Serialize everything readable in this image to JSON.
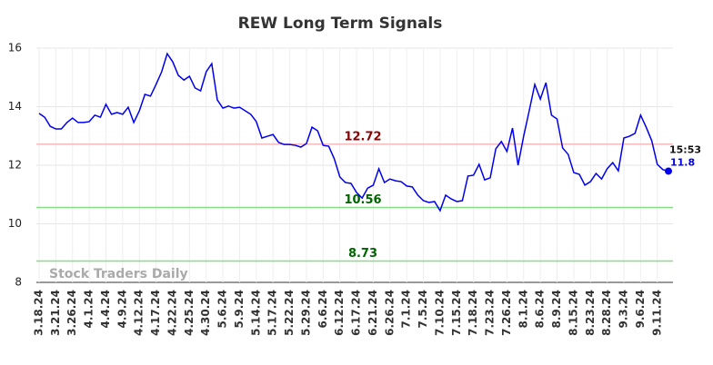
{
  "chart_data": {
    "type": "line",
    "title": "REW Long Term Signals",
    "categories": [
      "3.18.24",
      null,
      null,
      "3.21.24",
      null,
      null,
      "3.26.24",
      null,
      null,
      "4.1.24",
      null,
      null,
      "4.4.24",
      null,
      null,
      "4.9.24",
      null,
      null,
      "4.12.24",
      null,
      null,
      "4.17.24",
      null,
      null,
      "4.22.24",
      null,
      null,
      "4.25.24",
      null,
      null,
      "4.30.24",
      null,
      null,
      "5.6.24",
      null,
      null,
      "5.9.24",
      null,
      null,
      "5.14.24",
      null,
      null,
      "5.17.24",
      null,
      null,
      "5.22.24",
      null,
      null,
      "5.29.24",
      null,
      null,
      "6.6.24",
      null,
      null,
      "6.12.24",
      null,
      null,
      "6.17.24",
      null,
      null,
      "6.21.24",
      null,
      null,
      "6.26.24",
      null,
      null,
      "7.1.24",
      null,
      null,
      "7.5.24",
      null,
      null,
      "7.10.24",
      null,
      null,
      "7.15.24",
      null,
      null,
      "7.18.24",
      null,
      null,
      "7.23.24",
      null,
      null,
      "7.26.24",
      null,
      null,
      "8.1.24",
      null,
      null,
      "8.6.24",
      null,
      null,
      "8.9.24",
      null,
      null,
      "8.15.24",
      null,
      null,
      "8.23.24",
      null,
      null,
      "8.28.24",
      null,
      null,
      "9.3.24",
      null,
      null,
      "9.6.24",
      null,
      null,
      "9.11.24",
      null,
      null
    ],
    "values": [
      13.77,
      13.64,
      13.33,
      13.24,
      13.24,
      13.46,
      13.61,
      13.46,
      13.46,
      13.49,
      13.71,
      13.64,
      14.08,
      13.74,
      13.8,
      13.74,
      13.98,
      13.46,
      13.86,
      14.42,
      14.36,
      14.76,
      15.19,
      15.81,
      15.53,
      15.07,
      14.91,
      15.04,
      14.64,
      14.54,
      15.19,
      15.47,
      14.23,
      13.95,
      14.02,
      13.95,
      13.98,
      13.86,
      13.74,
      13.49,
      12.93,
      12.99,
      13.05,
      12.78,
      12.71,
      12.71,
      12.68,
      12.62,
      12.74,
      13.3,
      13.18,
      12.68,
      12.65,
      12.22,
      11.6,
      11.41,
      11.38,
      11.07,
      10.88,
      11.22,
      11.32,
      11.88,
      11.41,
      11.53,
      11.47,
      11.44,
      11.29,
      11.26,
      10.98,
      10.79,
      10.73,
      10.76,
      10.45,
      10.98,
      10.85,
      10.76,
      10.79,
      11.63,
      11.66,
      12.03,
      11.5,
      11.57,
      12.56,
      12.81,
      12.47,
      13.27,
      12.0,
      12.99,
      13.86,
      14.76,
      14.26,
      14.82,
      13.71,
      13.58,
      12.59,
      12.37,
      11.75,
      11.69,
      11.32,
      11.44,
      11.72,
      11.53,
      11.88,
      12.09,
      11.81,
      12.93,
      12.99,
      13.09,
      13.71,
      13.3,
      12.84,
      12.03,
      11.85,
      11.8
    ],
    "color": "#0000ee",
    "last_time": "15:53",
    "levels": [
      {
        "value": 12.72,
        "color": "#ffbbbb",
        "label_color": "#8b0000"
      },
      {
        "value": 10.56,
        "color": "#88dd88",
        "label_color": "#006400"
      },
      {
        "value": 8.73,
        "color": "#88dd88",
        "label_color": "#006400"
      }
    ],
    "watermark": "Stock Traders Daily",
    "ylim": [
      8,
      16
    ],
    "yticks": [
      8,
      10,
      12,
      14,
      16
    ],
    "grid": true
  }
}
